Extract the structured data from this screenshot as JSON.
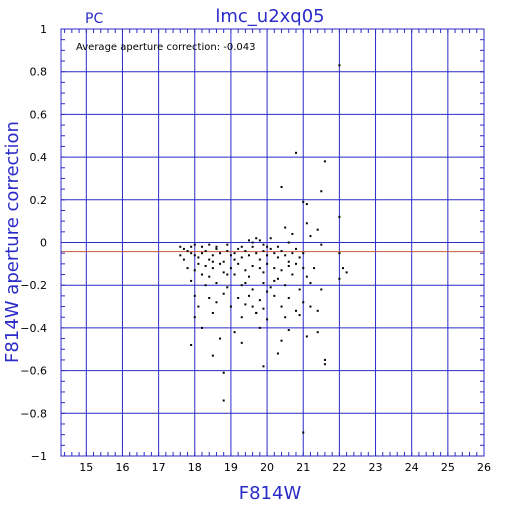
{
  "chart_data": {
    "type": "scatter",
    "title": "lmc_u2xq05",
    "subtitle": "PC",
    "xlabel": "F814W",
    "ylabel": "F814W aperture correction",
    "annotation": "Average aperture correction: -0.043",
    "xlim": [
      14.3,
      26
    ],
    "ylim": [
      -1,
      1
    ],
    "x_ticks": [
      "15",
      "16",
      "17",
      "18",
      "19",
      "20",
      "21",
      "22",
      "23",
      "24",
      "25",
      "26"
    ],
    "y_ticks": [
      "1",
      "0.8",
      "0.6",
      "0.4",
      "0.2",
      "0",
      "−0.2",
      "−0.4",
      "−0.6",
      "−0.8",
      "−1"
    ],
    "y_tick_values": [
      1,
      0.8,
      0.6,
      0.4,
      0.2,
      0,
      -0.2,
      -0.4,
      -0.6,
      -0.8,
      -1
    ],
    "grid": true,
    "reference_lines": [
      {
        "y": 0,
        "color": "#2b2bc8"
      },
      {
        "y": -0.043,
        "color": "#c85a3c"
      }
    ],
    "colors": {
      "axes": "#2b2bc8",
      "grid": "#2b2bc8",
      "points": "#000000",
      "average_line": "#c85a3c"
    },
    "points": [
      [
        22.0,
        0.83
      ],
      [
        20.8,
        0.42
      ],
      [
        21.6,
        0.38
      ],
      [
        20.4,
        0.26
      ],
      [
        21.5,
        0.24
      ],
      [
        21.0,
        0.19
      ],
      [
        21.1,
        0.18
      ],
      [
        22.0,
        0.12
      ],
      [
        20.5,
        0.07
      ],
      [
        21.1,
        0.09
      ],
      [
        21.4,
        0.06
      ],
      [
        21.2,
        0.03
      ],
      [
        21.5,
        -0.01
      ],
      [
        22.0,
        -0.05
      ],
      [
        22.1,
        -0.12
      ],
      [
        22.2,
        -0.14
      ],
      [
        22.0,
        -0.17
      ],
      [
        21.3,
        -0.12
      ],
      [
        21.5,
        -0.22
      ],
      [
        21.4,
        -0.32
      ],
      [
        21.4,
        -0.42
      ],
      [
        21.6,
        -0.55
      ],
      [
        21.6,
        -0.57
      ],
      [
        21.0,
        -0.89
      ],
      [
        17.6,
        -0.02
      ],
      [
        17.7,
        -0.03
      ],
      [
        17.8,
        -0.04
      ],
      [
        17.9,
        -0.05
      ],
      [
        18.0,
        -0.06
      ],
      [
        18.1,
        -0.07
      ],
      [
        18.2,
        -0.05
      ],
      [
        18.3,
        -0.04
      ],
      [
        18.4,
        -0.08
      ],
      [
        18.5,
        -0.06
      ],
      [
        18.6,
        -0.03
      ],
      [
        18.7,
        -0.05
      ],
      [
        18.8,
        -0.09
      ],
      [
        18.9,
        -0.04
      ],
      [
        19.0,
        -0.06
      ],
      [
        19.1,
        -0.05
      ],
      [
        19.2,
        -0.03
      ],
      [
        19.3,
        -0.07
      ],
      [
        19.4,
        -0.04
      ],
      [
        19.5,
        -0.06
      ],
      [
        19.6,
        -0.02
      ],
      [
        19.7,
        -0.05
      ],
      [
        19.8,
        -0.08
      ],
      [
        19.9,
        -0.04
      ],
      [
        20.0,
        -0.06
      ],
      [
        20.1,
        -0.03
      ],
      [
        20.2,
        -0.05
      ],
      [
        20.3,
        -0.07
      ],
      [
        20.4,
        -0.04
      ],
      [
        20.5,
        -0.06
      ],
      [
        20.6,
        -0.09
      ],
      [
        20.7,
        -0.05
      ],
      [
        20.8,
        -0.03
      ],
      [
        20.9,
        -0.07
      ],
      [
        21.0,
        -0.05
      ],
      [
        17.9,
        -0.02
      ],
      [
        18.0,
        -0.01
      ],
      [
        18.2,
        -0.02
      ],
      [
        18.4,
        -0.01
      ],
      [
        18.6,
        -0.02
      ],
      [
        18.9,
        -0.01
      ],
      [
        19.3,
        -0.02
      ],
      [
        19.6,
        0.0
      ],
      [
        19.9,
        -0.01
      ],
      [
        20.3,
        -0.02
      ],
      [
        19.5,
        0.01
      ],
      [
        19.7,
        0.02
      ],
      [
        19.8,
        0.01
      ],
      [
        20.1,
        0.02
      ],
      [
        20.0,
        -0.02
      ],
      [
        18.1,
        -0.1
      ],
      [
        18.3,
        -0.11
      ],
      [
        18.5,
        -0.12
      ],
      [
        18.7,
        -0.1
      ],
      [
        19.0,
        -0.12
      ],
      [
        19.2,
        -0.1
      ],
      [
        19.4,
        -0.13
      ],
      [
        19.6,
        -0.11
      ],
      [
        19.8,
        -0.12
      ],
      [
        20.0,
        -0.1
      ],
      [
        20.2,
        -0.12
      ],
      [
        20.4,
        -0.13
      ],
      [
        20.6,
        -0.11
      ],
      [
        20.8,
        -0.1
      ],
      [
        21.0,
        -0.12
      ],
      [
        18.0,
        -0.13
      ],
      [
        18.2,
        -0.15
      ],
      [
        18.4,
        -0.16
      ],
      [
        18.8,
        -0.14
      ],
      [
        19.1,
        -0.15
      ],
      [
        19.5,
        -0.16
      ],
      [
        19.9,
        -0.14
      ],
      [
        20.3,
        -0.17
      ],
      [
        20.7,
        -0.15
      ],
      [
        21.1,
        -0.16
      ],
      [
        17.9,
        -0.18
      ],
      [
        18.3,
        -0.2
      ],
      [
        18.6,
        -0.19
      ],
      [
        18.9,
        -0.21
      ],
      [
        19.3,
        -0.2
      ],
      [
        19.6,
        -0.22
      ],
      [
        19.9,
        -0.19
      ],
      [
        20.1,
        -0.21
      ],
      [
        20.5,
        -0.2
      ],
      [
        20.9,
        -0.22
      ],
      [
        21.2,
        -0.19
      ],
      [
        17.8,
        -0.12
      ],
      [
        17.7,
        -0.08
      ],
      [
        17.6,
        -0.06
      ],
      [
        18.0,
        -0.25
      ],
      [
        18.4,
        -0.26
      ],
      [
        18.8,
        -0.24
      ],
      [
        19.2,
        -0.26
      ],
      [
        19.5,
        -0.25
      ],
      [
        19.8,
        -0.27
      ],
      [
        20.2,
        -0.25
      ],
      [
        20.6,
        -0.26
      ],
      [
        21.0,
        -0.28
      ],
      [
        18.1,
        -0.3
      ],
      [
        18.6,
        -0.28
      ],
      [
        19.0,
        -0.3
      ],
      [
        19.4,
        -0.29
      ],
      [
        19.9,
        -0.31
      ],
      [
        20.4,
        -0.3
      ],
      [
        20.8,
        -0.32
      ],
      [
        21.2,
        -0.3
      ],
      [
        18.0,
        -0.35
      ],
      [
        18.5,
        -0.33
      ],
      [
        19.3,
        -0.35
      ],
      [
        19.7,
        -0.33
      ],
      [
        20.0,
        -0.36
      ],
      [
        20.5,
        -0.35
      ],
      [
        20.9,
        -0.34
      ],
      [
        18.2,
        -0.4
      ],
      [
        19.1,
        -0.42
      ],
      [
        19.8,
        -0.4
      ],
      [
        20.6,
        -0.41
      ],
      [
        17.9,
        -0.48
      ],
      [
        18.7,
        -0.45
      ],
      [
        19.3,
        -0.47
      ],
      [
        20.4,
        -0.46
      ],
      [
        21.1,
        -0.44
      ],
      [
        18.5,
        -0.53
      ],
      [
        20.3,
        -0.52
      ],
      [
        19.9,
        -0.58
      ],
      [
        18.8,
        -0.61
      ],
      [
        18.8,
        -0.74
      ],
      [
        19.7,
        -0.33
      ],
      [
        19.6,
        -0.3
      ],
      [
        20.0,
        -0.23
      ],
      [
        20.2,
        -0.18
      ],
      [
        20.7,
        0.04
      ],
      [
        20.6,
        0.0
      ],
      [
        19.1,
        -0.08
      ],
      [
        18.5,
        -0.09
      ],
      [
        18.9,
        -0.15
      ],
      [
        19.4,
        -0.19
      ]
    ]
  }
}
